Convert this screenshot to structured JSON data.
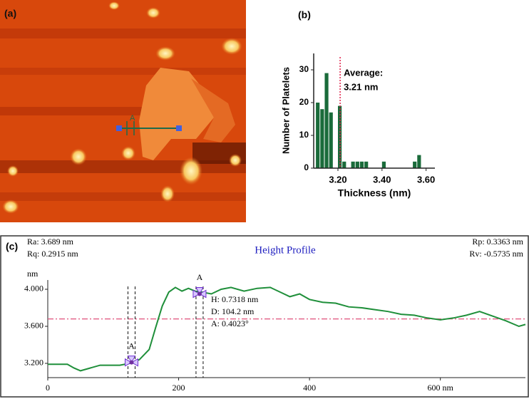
{
  "panel_a": {
    "label": "(a)",
    "line_label": "A"
  },
  "chart_data": [
    {
      "type": "histogram",
      "label": "(b)",
      "x_label": "Thickness (nm)",
      "y_label": "Number of Platelets",
      "bins": [
        3.1,
        3.12,
        3.14,
        3.16,
        3.18,
        3.2,
        3.22,
        3.24,
        3.26,
        3.28,
        3.3,
        3.32,
        3.34,
        3.36,
        3.38,
        3.4,
        3.42,
        3.44,
        3.46,
        3.48,
        3.5,
        3.52,
        3.54,
        3.56,
        3.58,
        3.6
      ],
      "counts": [
        20,
        18,
        29,
        17,
        0,
        19,
        2,
        0,
        2,
        2,
        2,
        2,
        0,
        0,
        0,
        2,
        0,
        0,
        0,
        0,
        0,
        0,
        2,
        4,
        0
      ],
      "color": "#1a6b3a",
      "average": 3.21,
      "average_color": "#e0204a",
      "average_label": [
        "Average:",
        "3.21 nm"
      ],
      "xlim": [
        3.09,
        3.64
      ],
      "ylim": [
        0,
        35
      ],
      "xticks": [
        {
          "value": 3.2,
          "label": "3.20"
        },
        {
          "value": 3.4,
          "label": "3.40"
        },
        {
          "value": 3.6,
          "label": "3.60"
        }
      ],
      "yticks": [
        0,
        10,
        20,
        30
      ]
    },
    {
      "type": "line",
      "label": "(c)",
      "title": "Height Profile",
      "y_label": "nm",
      "stats": [
        "Ra: 3.689 nm",
        "Rq: 0.2915 nm",
        "Rp: 0.3363 nm",
        "Rv: -0.5735 nm"
      ],
      "measurements": [
        "H: 0.7318 nm",
        "D: 104.2 nm",
        "A: 0.4023°"
      ],
      "x": [
        0,
        30,
        40,
        50,
        65,
        80,
        95,
        110,
        125,
        140,
        155,
        165,
        175,
        185,
        195,
        205,
        215,
        225,
        235,
        250,
        265,
        280,
        300,
        320,
        340,
        355,
        370,
        385,
        400,
        420,
        440,
        460,
        480,
        500,
        520,
        540,
        560,
        580,
        600,
        620,
        640,
        660,
        680,
        700,
        720,
        730
      ],
      "series": [
        {
          "color": "#1f8f3a",
          "values": [
            3.19,
            3.19,
            3.15,
            3.12,
            3.15,
            3.18,
            3.18,
            3.18,
            3.2,
            3.24,
            3.35,
            3.59,
            3.82,
            3.97,
            4.02,
            3.98,
            4.01,
            3.98,
            3.97,
            3.95,
            4.0,
            4.02,
            3.98,
            4.01,
            4.02,
            3.97,
            3.92,
            3.95,
            3.89,
            3.86,
            3.85,
            3.81,
            3.8,
            3.78,
            3.76,
            3.73,
            3.72,
            3.69,
            3.67,
            3.69,
            3.72,
            3.76,
            3.71,
            3.66,
            3.6,
            3.62
          ]
        }
      ],
      "reference_line": 3.68,
      "reference_color": "#e0507a",
      "markers": [
        {
          "label": "A",
          "x": 128,
          "y": 3.21
        },
        {
          "label": "A",
          "x": 232,
          "y": 3.95
        }
      ],
      "xlim": [
        0,
        730
      ],
      "ylim": [
        3.046,
        4.1
      ],
      "xticks": [
        0,
        200,
        400,
        {
          "value": 600,
          "label": "600 nm"
        }
      ],
      "yticks": [
        {
          "value": 3.2,
          "label": "3.200"
        },
        {
          "value": 3.6,
          "label": "3.600"
        },
        {
          "value": 4.0,
          "label": "4.000"
        }
      ]
    }
  ]
}
